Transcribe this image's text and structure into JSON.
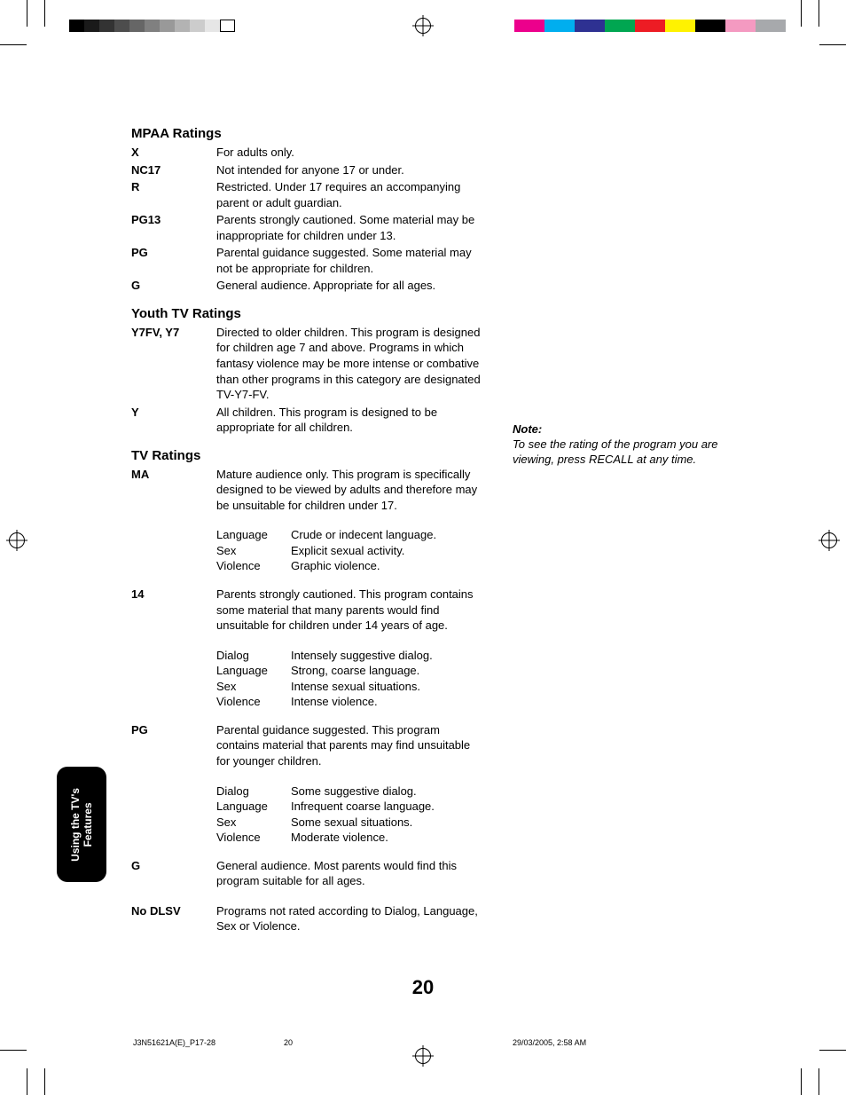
{
  "colorBarsLeft": [
    "#000000",
    "#1a1a1a",
    "#333333",
    "#4d4d4d",
    "#666666",
    "#808080",
    "#999999",
    "#b3b3b3",
    "#cccccc",
    "#e6e6e6",
    "#ffffff"
  ],
  "colorBarsRight": [
    "#ec008c",
    "#00aeef",
    "#2e3192",
    "#00a651",
    "#ed1c24",
    "#fff200",
    "#000000",
    "#f49ac1",
    "#a7a9ac"
  ],
  "mpaa": {
    "heading": "MPAA Ratings",
    "rows": [
      {
        "label": "X",
        "desc": "For adults only."
      },
      {
        "label": "NC17",
        "desc": "Not intended for anyone 17 or under."
      },
      {
        "label": "R",
        "desc": "Restricted. Under 17 requires an accompanying parent or adult guardian."
      },
      {
        "label": "PG13",
        "desc": "Parents strongly cautioned. Some material may be inappropriate for children under 13."
      },
      {
        "label": "PG",
        "desc": "Parental guidance suggested. Some material may not be appropriate for children."
      },
      {
        "label": "G",
        "desc": "General audience. Appropriate for all ages."
      }
    ]
  },
  "youth": {
    "heading": "Youth TV Ratings",
    "rows": [
      {
        "label": "Y7FV, Y7",
        "desc": "Directed to older children. This program is designed for children age 7 and above. Programs in which fantasy violence may be more intense or combative than other programs in this category are designated TV-Y7-FV."
      },
      {
        "label": "Y",
        "desc": "All children. This program is designed to be appropriate for all children."
      }
    ]
  },
  "tv": {
    "heading": "TV Ratings",
    "rows": [
      {
        "label": "MA",
        "desc": "Mature audience only. This program is specifically designed to be viewed by adults and therefore may be unsuitable for children under 17.",
        "sub": [
          {
            "k": "Language",
            "v": "Crude or indecent language."
          },
          {
            "k": "Sex",
            "v": "Explicit sexual activity."
          },
          {
            "k": "Violence",
            "v": "Graphic violence."
          }
        ]
      },
      {
        "label": "14",
        "desc": "Parents strongly cautioned. This program contains some material that many parents would find unsuitable for children under 14 years of age.",
        "sub": [
          {
            "k": "Dialog",
            "v": "Intensely suggestive dialog."
          },
          {
            "k": "Language",
            "v": "Strong, coarse language."
          },
          {
            "k": "Sex",
            "v": "Intense sexual situations."
          },
          {
            "k": "Violence",
            "v": "Intense violence."
          }
        ]
      },
      {
        "label": "PG",
        "desc": "Parental guidance suggested. This program contains material that parents may find unsuitable for younger children.",
        "sub": [
          {
            "k": "Dialog",
            "v": "Some suggestive dialog."
          },
          {
            "k": "Language",
            "v": "Infrequent coarse language."
          },
          {
            "k": "Sex",
            "v": "Some sexual situations."
          },
          {
            "k": "Violence",
            "v": "Moderate violence."
          }
        ]
      },
      {
        "label": "G",
        "desc": "General audience. Most parents would find this program suitable for all ages."
      },
      {
        "label": "No DLSV",
        "desc": "Programs not rated according to Dialog, Language, Sex or Violence."
      }
    ]
  },
  "note": {
    "heading": "Note:",
    "text": "To see the rating of the program you are viewing, press RECALL at any time."
  },
  "sideTab": {
    "line1": "Using the TV's",
    "line2": "Features"
  },
  "pageNumber": "20",
  "footer": {
    "file": "J3N51621A(E)_P17-28",
    "page": "20",
    "date": "29/03/2005, 2:58 AM"
  }
}
